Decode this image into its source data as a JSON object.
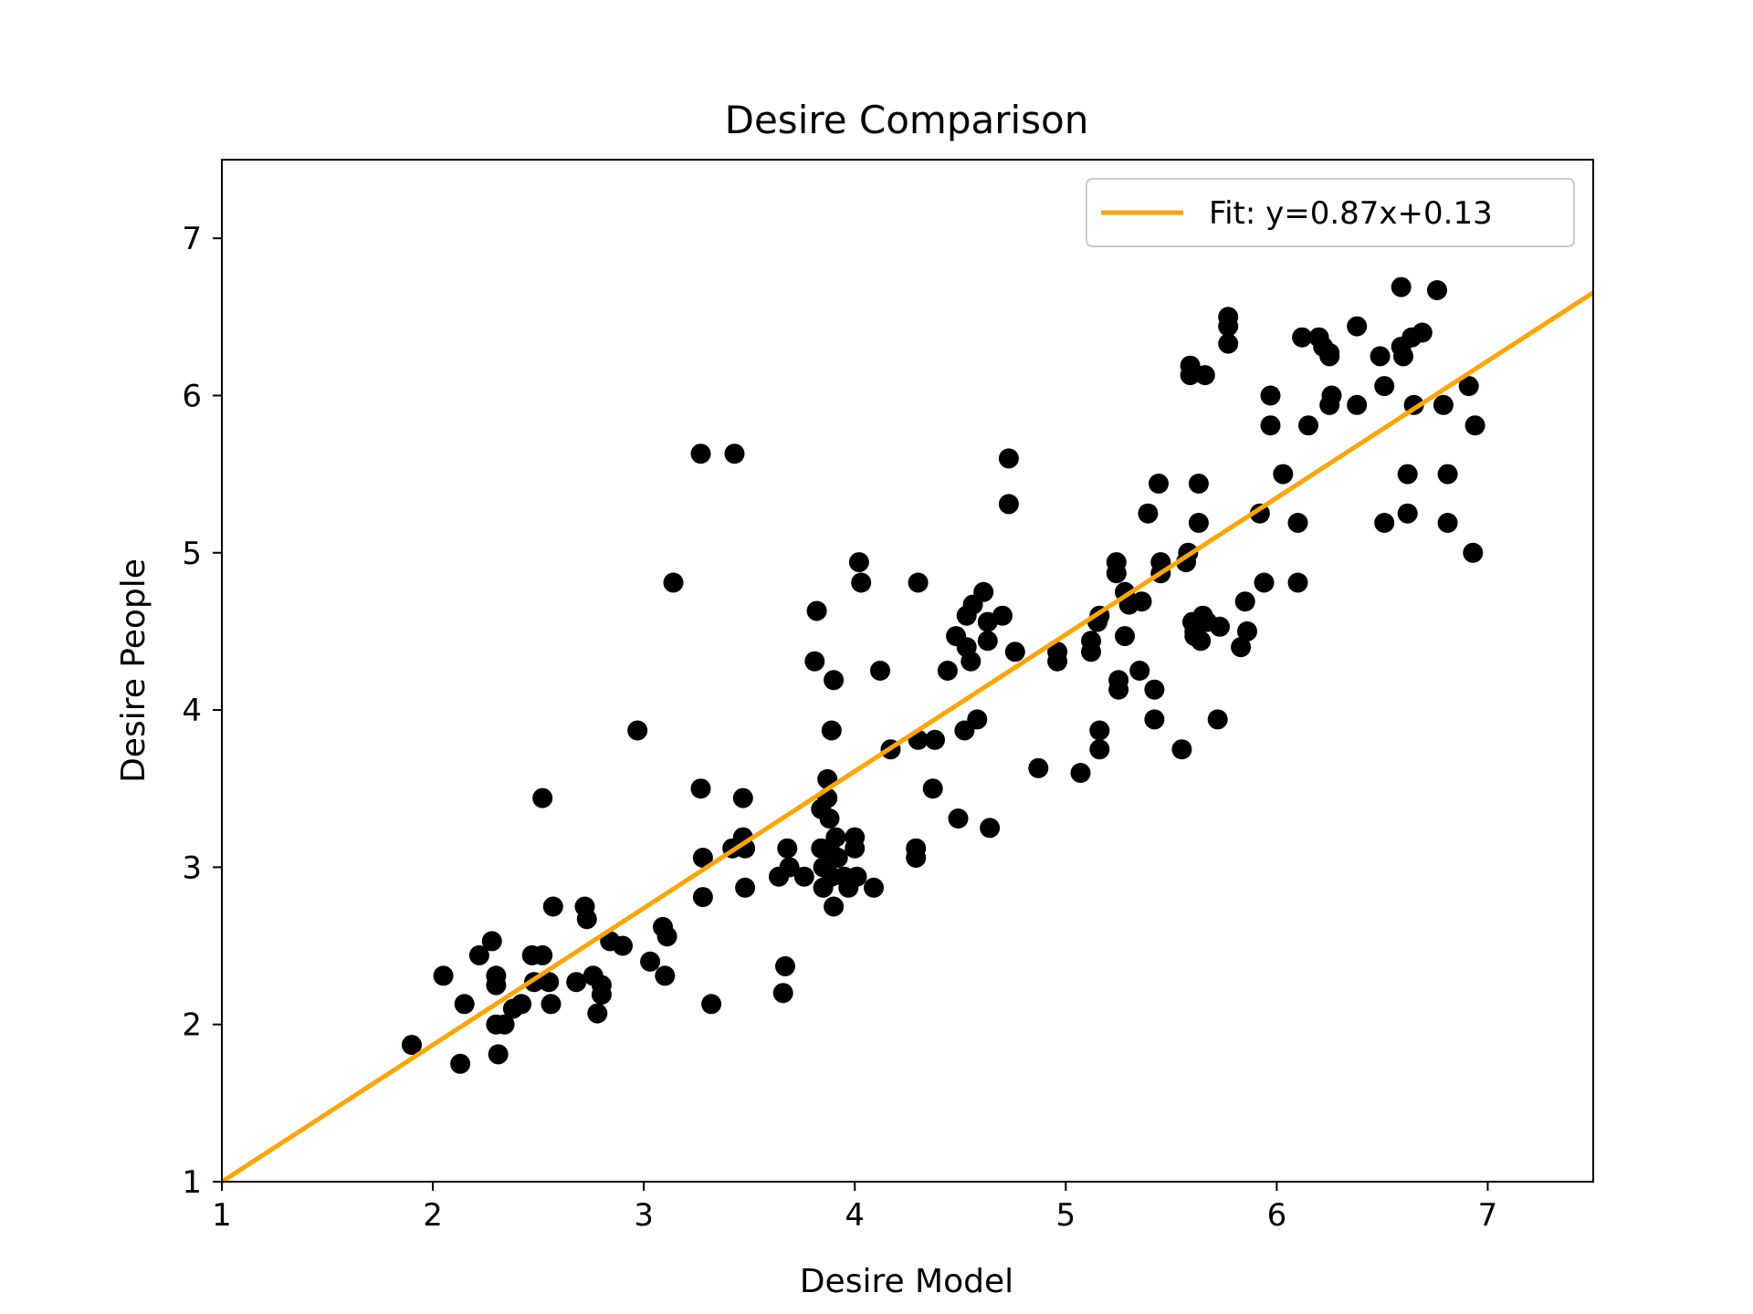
{
  "chart_data": {
    "type": "scatter",
    "title": "Desire Comparison",
    "xlabel": "Desire Model",
    "ylabel": "Desire People",
    "xlim": [
      1,
      7.5
    ],
    "ylim": [
      1,
      7.5
    ],
    "xticks": [
      1,
      2,
      3,
      4,
      5,
      6,
      7
    ],
    "yticks": [
      1,
      2,
      3,
      4,
      5,
      6,
      7
    ],
    "grid": false,
    "legend_position": "top-right",
    "colors": {
      "points": "#000000",
      "fit_line": "#FFA500"
    },
    "fit": {
      "label": "Fit: y=0.87x+0.13",
      "slope": 0.87,
      "intercept": 0.13
    },
    "points": [
      [
        1.9,
        1.87
      ],
      [
        2.05,
        2.31
      ],
      [
        2.13,
        1.75
      ],
      [
        2.15,
        2.13
      ],
      [
        2.22,
        2.44
      ],
      [
        2.28,
        2.53
      ],
      [
        2.3,
        2.31
      ],
      [
        2.3,
        2.25
      ],
      [
        2.3,
        2.0
      ],
      [
        2.31,
        1.81
      ],
      [
        2.34,
        2.0
      ],
      [
        2.38,
        2.1
      ],
      [
        2.42,
        2.13
      ],
      [
        2.47,
        2.44
      ],
      [
        2.48,
        2.27
      ],
      [
        2.52,
        2.44
      ],
      [
        2.52,
        3.44
      ],
      [
        2.55,
        2.27
      ],
      [
        2.56,
        2.13
      ],
      [
        2.57,
        2.75
      ],
      [
        2.68,
        2.27
      ],
      [
        2.72,
        2.75
      ],
      [
        2.73,
        2.67
      ],
      [
        2.76,
        2.31
      ],
      [
        2.78,
        2.07
      ],
      [
        2.8,
        2.19
      ],
      [
        2.8,
        2.25
      ],
      [
        2.84,
        2.53
      ],
      [
        2.9,
        2.5
      ],
      [
        2.97,
        3.87
      ],
      [
        3.03,
        2.4
      ],
      [
        3.09,
        2.62
      ],
      [
        3.1,
        2.31
      ],
      [
        3.11,
        2.56
      ],
      [
        3.14,
        4.81
      ],
      [
        3.27,
        3.5
      ],
      [
        3.27,
        5.63
      ],
      [
        3.28,
        3.06
      ],
      [
        3.28,
        2.81
      ],
      [
        3.32,
        2.13
      ],
      [
        3.42,
        3.12
      ],
      [
        3.43,
        5.63
      ],
      [
        3.47,
        3.44
      ],
      [
        3.47,
        3.19
      ],
      [
        3.48,
        2.87
      ],
      [
        3.48,
        3.12
      ],
      [
        3.64,
        2.94
      ],
      [
        3.66,
        2.2
      ],
      [
        3.67,
        2.37
      ],
      [
        3.68,
        3.12
      ],
      [
        3.69,
        3.0
      ],
      [
        3.76,
        2.94
      ],
      [
        3.81,
        4.31
      ],
      [
        3.82,
        4.63
      ],
      [
        3.84,
        3.12
      ],
      [
        3.84,
        3.37
      ],
      [
        3.85,
        3.0
      ],
      [
        3.85,
        2.87
      ],
      [
        3.87,
        3.44
      ],
      [
        3.87,
        3.56
      ],
      [
        3.88,
        3.31
      ],
      [
        3.88,
        3.12
      ],
      [
        3.89,
        2.94
      ],
      [
        3.89,
        3.87
      ],
      [
        3.9,
        2.75
      ],
      [
        3.9,
        4.19
      ],
      [
        3.91,
        3.19
      ],
      [
        3.92,
        3.06
      ],
      [
        3.95,
        2.94
      ],
      [
        3.97,
        2.87
      ],
      [
        4.0,
        3.19
      ],
      [
        4.0,
        3.12
      ],
      [
        4.01,
        2.94
      ],
      [
        4.02,
        4.94
      ],
      [
        4.03,
        4.81
      ],
      [
        4.09,
        2.87
      ],
      [
        4.12,
        4.25
      ],
      [
        4.17,
        3.75
      ],
      [
        4.29,
        3.12
      ],
      [
        4.29,
        3.06
      ],
      [
        4.3,
        3.81
      ],
      [
        4.3,
        4.81
      ],
      [
        4.37,
        3.5
      ],
      [
        4.38,
        3.81
      ],
      [
        4.44,
        4.25
      ],
      [
        4.48,
        4.47
      ],
      [
        4.49,
        3.31
      ],
      [
        4.52,
        3.87
      ],
      [
        4.53,
        4.4
      ],
      [
        4.53,
        4.6
      ],
      [
        4.55,
        4.31
      ],
      [
        4.56,
        4.67
      ],
      [
        4.58,
        3.94
      ],
      [
        4.61,
        4.75
      ],
      [
        4.63,
        4.56
      ],
      [
        4.63,
        4.44
      ],
      [
        4.64,
        3.25
      ],
      [
        4.7,
        4.6
      ],
      [
        4.73,
        5.6
      ],
      [
        4.73,
        5.31
      ],
      [
        4.76,
        4.37
      ],
      [
        4.87,
        3.63
      ],
      [
        4.96,
        4.31
      ],
      [
        4.96,
        4.37
      ],
      [
        5.07,
        3.6
      ],
      [
        5.12,
        4.44
      ],
      [
        5.12,
        4.37
      ],
      [
        5.15,
        4.56
      ],
      [
        5.16,
        4.6
      ],
      [
        5.16,
        3.75
      ],
      [
        5.16,
        3.87
      ],
      [
        5.24,
        4.94
      ],
      [
        5.24,
        4.87
      ],
      [
        5.25,
        4.19
      ],
      [
        5.25,
        4.13
      ],
      [
        5.28,
        4.75
      ],
      [
        5.28,
        4.47
      ],
      [
        5.3,
        4.67
      ],
      [
        5.35,
        4.25
      ],
      [
        5.36,
        4.69
      ],
      [
        5.39,
        5.25
      ],
      [
        5.42,
        3.94
      ],
      [
        5.42,
        4.13
      ],
      [
        5.44,
        5.44
      ],
      [
        5.45,
        4.94
      ],
      [
        5.45,
        4.87
      ],
      [
        5.55,
        3.75
      ],
      [
        5.57,
        4.94
      ],
      [
        5.58,
        5.0
      ],
      [
        5.59,
        6.13
      ],
      [
        5.59,
        6.19
      ],
      [
        5.6,
        4.56
      ],
      [
        5.61,
        4.5
      ],
      [
        5.61,
        4.47
      ],
      [
        5.63,
        5.44
      ],
      [
        5.63,
        5.19
      ],
      [
        5.64,
        4.44
      ],
      [
        5.65,
        4.6
      ],
      [
        5.66,
        6.13
      ],
      [
        5.67,
        4.56
      ],
      [
        5.72,
        3.94
      ],
      [
        5.73,
        4.53
      ],
      [
        5.77,
        6.5
      ],
      [
        5.77,
        6.44
      ],
      [
        5.77,
        6.33
      ],
      [
        5.83,
        4.4
      ],
      [
        5.85,
        4.69
      ],
      [
        5.86,
        4.5
      ],
      [
        5.92,
        5.25
      ],
      [
        5.94,
        4.81
      ],
      [
        5.97,
        6.0
      ],
      [
        5.97,
        5.81
      ],
      [
        6.03,
        5.5
      ],
      [
        6.1,
        5.19
      ],
      [
        6.1,
        4.81
      ],
      [
        6.12,
        6.37
      ],
      [
        6.15,
        5.81
      ],
      [
        6.2,
        6.37
      ],
      [
        6.22,
        6.31
      ],
      [
        6.25,
        6.27
      ],
      [
        6.25,
        6.25
      ],
      [
        6.25,
        5.94
      ],
      [
        6.26,
        6.0
      ],
      [
        6.38,
        5.94
      ],
      [
        6.38,
        6.44
      ],
      [
        6.49,
        6.25
      ],
      [
        6.51,
        6.06
      ],
      [
        6.51,
        5.19
      ],
      [
        6.59,
        6.69
      ],
      [
        6.59,
        6.31
      ],
      [
        6.6,
        6.25
      ],
      [
        6.62,
        5.5
      ],
      [
        6.62,
        5.25
      ],
      [
        6.64,
        6.37
      ],
      [
        6.65,
        5.94
      ],
      [
        6.69,
        6.4
      ],
      [
        6.76,
        6.67
      ],
      [
        6.79,
        5.94
      ],
      [
        6.81,
        5.5
      ],
      [
        6.81,
        5.19
      ],
      [
        6.91,
        6.06
      ],
      [
        6.93,
        5.0
      ],
      [
        6.94,
        5.81
      ]
    ]
  }
}
